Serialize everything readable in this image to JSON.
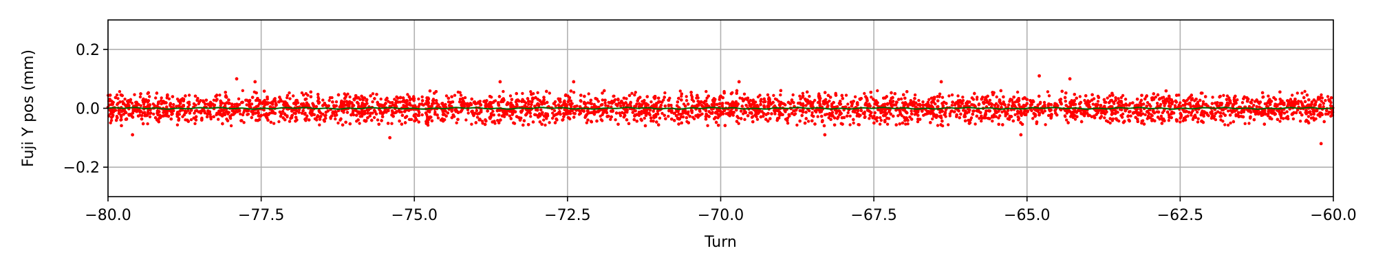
{
  "chart_data": {
    "type": "scatter",
    "title": "",
    "xlabel": "Turn",
    "ylabel": "Fuji Y pos (mm)",
    "xlim": [
      -80.0,
      -60.0
    ],
    "ylim": [
      -0.3,
      0.3
    ],
    "xticks": [
      -80.0,
      -77.5,
      -75.0,
      -72.5,
      -70.0,
      -67.5,
      -65.0,
      -62.5,
      -60.0
    ],
    "xtick_labels": [
      "−80.0",
      "−77.5",
      "−75.0",
      "−72.5",
      "−70.0",
      "−67.5",
      "−65.0",
      "−62.5",
      "−60.0"
    ],
    "yticks": [
      -0.2,
      0.0,
      0.2
    ],
    "ytick_labels": [
      "−0.2",
      "0.0",
      "0.2"
    ],
    "grid": true,
    "series": [
      {
        "kind": "scatter",
        "color": "#ff0000",
        "center": 0.0,
        "typical_spread": [
          -0.06,
          0.06
        ],
        "outliers": [
          {
            "x": -79.6,
            "y": -0.09
          },
          {
            "x": -77.9,
            "y": 0.1
          },
          {
            "x": -77.6,
            "y": 0.09
          },
          {
            "x": -75.4,
            "y": -0.1
          },
          {
            "x": -73.6,
            "y": 0.09
          },
          {
            "x": -72.4,
            "y": 0.09
          },
          {
            "x": -69.7,
            "y": 0.09
          },
          {
            "x": -68.3,
            "y": -0.09
          },
          {
            "x": -66.4,
            "y": 0.09
          },
          {
            "x": -65.1,
            "y": -0.09
          },
          {
            "x": -64.8,
            "y": 0.11
          },
          {
            "x": -64.3,
            "y": 0.1
          },
          {
            "x": -60.2,
            "y": -0.12
          }
        ]
      },
      {
        "kind": "line",
        "color": "#006400",
        "values_y": 0.0
      }
    ]
  }
}
